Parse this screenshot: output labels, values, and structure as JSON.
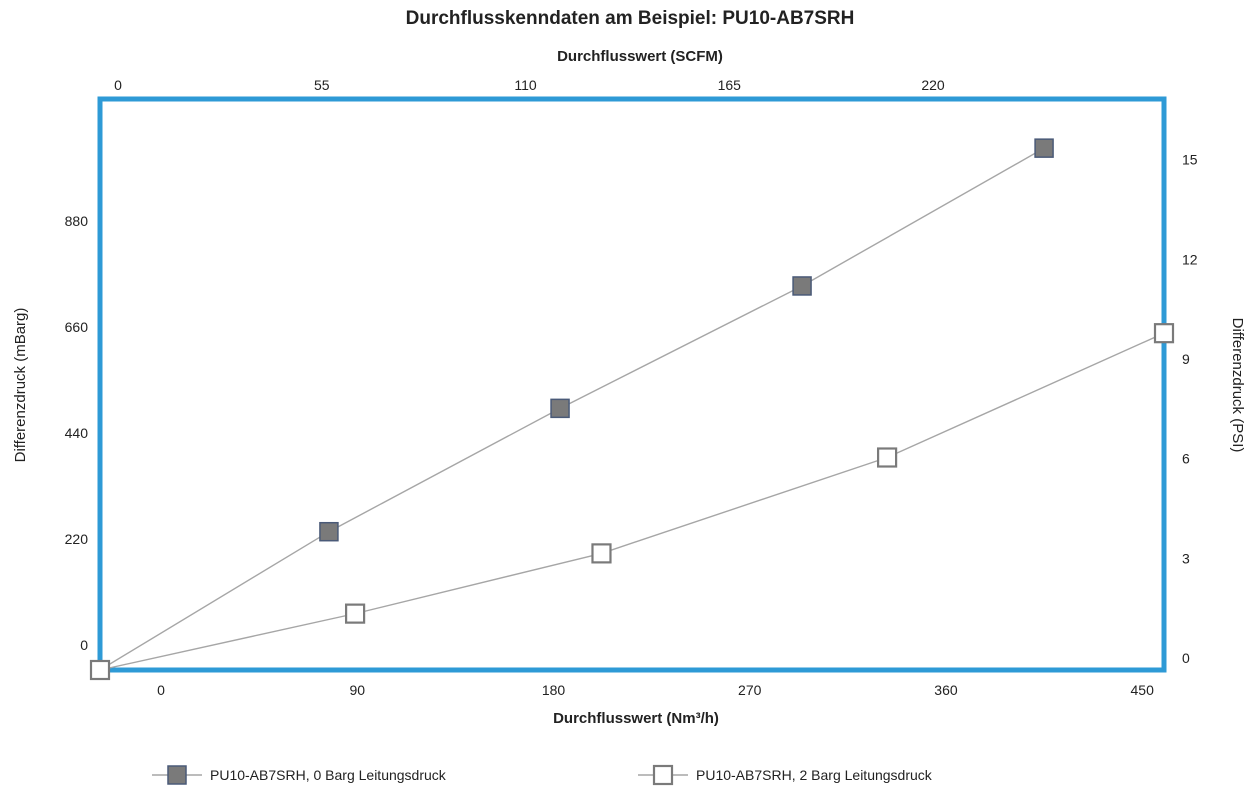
{
  "chart_data": {
    "type": "line",
    "title": "Durchflusskenndaten am Beispiel: PU10-AB7SRH",
    "x_bottom": {
      "label": "Durchflusswert (Nm³/h)",
      "ticks": [
        "0",
        "90",
        "180",
        "270",
        "360",
        "450"
      ],
      "tick_values": [
        0,
        90,
        180,
        270,
        360,
        450
      ],
      "range": [
        -28,
        460
      ]
    },
    "x_top": {
      "label": "Durchflusswert (SCFM)",
      "ticks": [
        "0",
        "55",
        "110",
        "165",
        "220"
      ],
      "tick_values": [
        0,
        55,
        110,
        165,
        220
      ]
    },
    "y_left": {
      "label": "Differenzdruck (mBarg)",
      "ticks": [
        "0",
        "220",
        "440",
        "660",
        "880"
      ],
      "tick_values": [
        0,
        220,
        440,
        660,
        880
      ],
      "range": [
        -25,
        1160
      ]
    },
    "y_right": {
      "label": "Differenzdruck (PSI)",
      "ticks": [
        "0",
        "3",
        "6",
        "9",
        "12",
        "15"
      ],
      "tick_values": [
        0,
        3,
        6,
        9,
        12,
        15
      ]
    },
    "series": [
      {
        "name": "PU10-AB7SRH, 0 Barg  Leitungsdruck",
        "marker": "filled-square",
        "color": "#7a7a7a",
        "x": [
          -28,
          77,
          183,
          294,
          405
        ],
        "y": [
          -25,
          262,
          518,
          772,
          1058
        ]
      },
      {
        "name": "PU10-AB7SRH, 2 Barg  Leitungsdruck",
        "marker": "open-square",
        "color": "#7a7a7a",
        "x": [
          -28,
          89,
          202,
          333,
          460
        ],
        "y": [
          -25,
          92,
          217,
          416,
          674
        ]
      }
    ],
    "frame_color": "#2e9ad6",
    "line_color": "#a6a6a6",
    "grid": false,
    "legend": "bottom"
  }
}
